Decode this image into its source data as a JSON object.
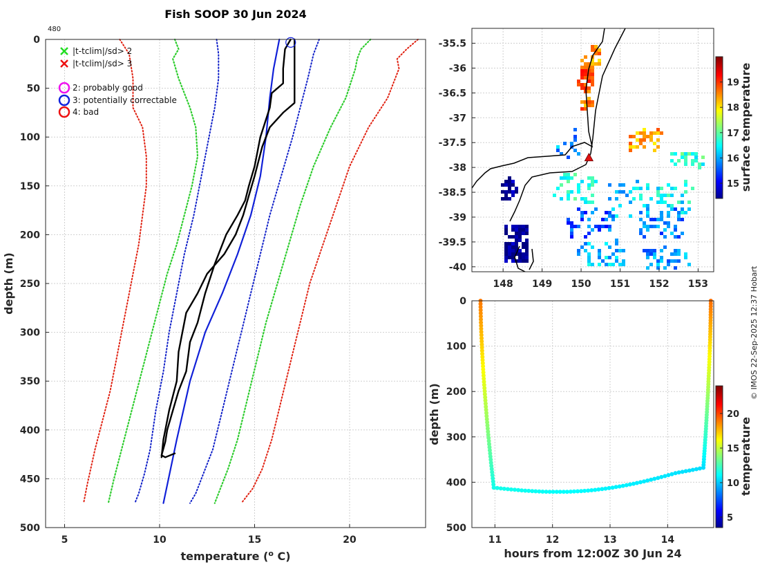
{
  "title": "Fish SOOP 30 Jun 2024",
  "profile_label": "480",
  "credit": "© IMOS 22-Sep-2025 12:37 Hobart",
  "colors": {
    "clim_green": "#2ecc2e",
    "clim_red": "#e02010",
    "clim_blue": "#1020c8",
    "profile": "#000000",
    "model": "#1020d8"
  },
  "legend": [
    {
      "marker": "x",
      "color": "#22dd22",
      "label": "|t-tclim|/sd> 2"
    },
    {
      "marker": "x",
      "color": "#ee1111",
      "label": "|t-tclim|/sd> 3"
    },
    {
      "marker": "o",
      "color": "#ee11ee",
      "label": "2: probably good"
    },
    {
      "marker": "o",
      "color": "#1122dd",
      "label": "3: potentially correctable"
    },
    {
      "marker": "o",
      "color": "#ee1111",
      "label": "4: bad"
    }
  ],
  "chart_data": [
    {
      "type": "line",
      "id": "profile",
      "xlabel": "temperature (o C)",
      "xlabel_main": "temperature (",
      "xlabel_sup": "o",
      "xlabel_end": " C)",
      "ylabel": "depth (m)",
      "xlim": [
        4,
        24
      ],
      "ylim": [
        500,
        0
      ],
      "xticks": [
        5,
        10,
        15,
        20
      ],
      "yticks": [
        0,
        50,
        100,
        150,
        200,
        250,
        300,
        350,
        400,
        450,
        500
      ],
      "flagged_point": {
        "temp": 16.9,
        "depth": 1
      },
      "series": [
        {
          "name": "clim +3sd",
          "style": "red-dotted",
          "temp": [
            23.6,
            23.0,
            22.5,
            22.6,
            22.0,
            21.0,
            20.0,
            19.3,
            18.6,
            17.9,
            17.4,
            16.9,
            16.4,
            15.9,
            15.4,
            14.9,
            14.3
          ],
          "depth": [
            0,
            10,
            20,
            30,
            60,
            90,
            130,
            170,
            210,
            250,
            290,
            330,
            370,
            410,
            440,
            460,
            475
          ]
        },
        {
          "name": "clim +2sd",
          "style": "green-dotted",
          "temp": [
            21.1,
            20.6,
            20.4,
            20.3,
            19.8,
            19.0,
            18.1,
            17.4,
            16.8,
            16.2,
            15.6,
            15.1,
            14.6,
            14.1,
            13.6,
            13.2,
            12.9
          ],
          "depth": [
            0,
            10,
            20,
            30,
            60,
            90,
            130,
            170,
            210,
            250,
            290,
            330,
            370,
            410,
            440,
            460,
            475
          ]
        },
        {
          "name": "clim +1sd",
          "style": "blue-dotted",
          "temp": [
            18.4,
            18.1,
            17.8,
            17.4,
            17.0,
            16.4,
            15.8,
            15.3,
            14.8,
            14.3,
            13.8,
            13.3,
            12.8,
            12.3,
            11.9,
            11.6
          ],
          "depth": [
            0,
            15,
            40,
            70,
            100,
            140,
            180,
            220,
            260,
            300,
            340,
            380,
            420,
            445,
            465,
            475
          ]
        },
        {
          "name": "clim -1sd",
          "style": "blue-dotted",
          "temp": [
            13.0,
            13.1,
            13.1,
            12.9,
            12.6,
            12.2,
            11.8,
            11.3,
            10.9,
            10.5,
            10.2,
            9.8,
            9.5,
            9.2,
            8.9,
            8.7
          ],
          "depth": [
            0,
            15,
            40,
            70,
            100,
            140,
            180,
            220,
            260,
            300,
            340,
            380,
            420,
            445,
            465,
            475
          ]
        },
        {
          "name": "clim -2sd",
          "style": "green-dotted",
          "temp": [
            10.8,
            11.0,
            10.7,
            11.0,
            11.6,
            11.9,
            12.0,
            11.7,
            11.3,
            10.9,
            10.4,
            10.0,
            9.6,
            9.2,
            8.8,
            8.4,
            8.0,
            7.6,
            7.3
          ],
          "depth": [
            0,
            10,
            20,
            40,
            70,
            90,
            120,
            150,
            180,
            210,
            240,
            270,
            300,
            330,
            360,
            390,
            420,
            450,
            475
          ]
        },
        {
          "name": "clim -3sd",
          "style": "red-dotted",
          "temp": [
            7.9,
            8.4,
            8.6,
            8.6,
            9.1,
            9.3,
            9.3,
            9.1,
            8.9,
            8.6,
            8.3,
            8.0,
            7.7,
            7.4,
            7.0,
            6.6,
            6.2,
            6.0
          ],
          "depth": [
            0,
            15,
            40,
            70,
            90,
            120,
            150,
            180,
            210,
            240,
            270,
            300,
            330,
            360,
            390,
            420,
            455,
            475
          ]
        },
        {
          "name": "model climatology",
          "style": "blue-solid",
          "temp": [
            16.3,
            16.0,
            15.8,
            15.6,
            15.3,
            14.8,
            14.1,
            13.3,
            12.4,
            11.6,
            10.9,
            10.2
          ],
          "depth": [
            0,
            30,
            60,
            100,
            140,
            180,
            220,
            260,
            300,
            350,
            410,
            475
          ]
        },
        {
          "name": "profile A",
          "style": "black-solid",
          "temp": [
            16.9,
            16.6,
            16.5,
            16.5,
            15.9,
            15.8,
            15.3,
            15.0,
            14.7,
            14.5,
            14.1,
            13.5,
            12.9,
            12.4,
            12.0,
            11.6,
            11.4,
            11.0,
            10.7,
            10.4,
            10.3,
            10.1,
            10.3,
            10.8
          ],
          "depth": [
            0,
            10,
            30,
            45,
            55,
            70,
            100,
            130,
            150,
            165,
            180,
            200,
            230,
            260,
            290,
            310,
            340,
            360,
            380,
            400,
            412,
            426,
            428,
            424
          ]
        },
        {
          "name": "profile B",
          "style": "black-solid",
          "temp": [
            17.1,
            17.1,
            17.1,
            16.5,
            15.8,
            15.4,
            15.0,
            14.7,
            14.4,
            14.0,
            13.4,
            12.5,
            12.0,
            11.4,
            11.0,
            10.9,
            10.5,
            10.2,
            10.1
          ],
          "depth": [
            0,
            30,
            65,
            75,
            90,
            110,
            140,
            160,
            180,
            200,
            220,
            240,
            260,
            280,
            320,
            350,
            380,
            410,
            428
          ]
        }
      ]
    },
    {
      "type": "heatmap",
      "id": "sst-map",
      "title": "",
      "xlabel": "",
      "ylabel": "",
      "xlim": [
        147.2,
        153.4
      ],
      "ylim": [
        -40.1,
        -35.2
      ],
      "xticks": [
        148,
        149,
        150,
        151,
        152,
        153
      ],
      "yticks": [
        -35.5,
        -36,
        -36.5,
        -37,
        -37.5,
        -38,
        -38.5,
        -39,
        -39.5,
        -40
      ],
      "ytick_labels": [
        "-35.5",
        "-36",
        "-36.5",
        "-37",
        "-37.5",
        "-38",
        "-38.5",
        "-39",
        "-39.5",
        "-40"
      ],
      "colorbar": {
        "label": "surface temperature",
        "range": [
          14.4,
          20.0
        ],
        "ticks": [
          15,
          16,
          17,
          18,
          19
        ]
      },
      "marker": {
        "lon": 150.2,
        "lat": -37.8,
        "color": "#e01010"
      },
      "patches": [
        {
          "lon": 150.1,
          "lat": -36.1,
          "value": 18.8,
          "n": 70,
          "slon": 0.18,
          "slat": 0.35
        },
        {
          "lon": 150.3,
          "lat": -35.7,
          "value": 18.5,
          "n": 20,
          "slon": 0.12,
          "slat": 0.2
        },
        {
          "lon": 150.1,
          "lat": -36.7,
          "value": 18.6,
          "n": 25,
          "slon": 0.12,
          "slat": 0.12
        },
        {
          "lon": 151.6,
          "lat": -37.4,
          "value": 18.4,
          "n": 35,
          "slon": 0.4,
          "slat": 0.2
        },
        {
          "lon": 152.7,
          "lat": -37.8,
          "value": 16.8,
          "n": 30,
          "slon": 0.4,
          "slat": 0.15
        },
        {
          "lon": 149.8,
          "lat": -38.4,
          "value": 16.6,
          "n": 40,
          "slon": 0.5,
          "slat": 0.3
        },
        {
          "lon": 151.2,
          "lat": -38.6,
          "value": 16.3,
          "n": 40,
          "slon": 0.6,
          "slat": 0.4
        },
        {
          "lon": 152.4,
          "lat": -38.6,
          "value": 16.5,
          "n": 35,
          "slon": 0.5,
          "slat": 0.4
        },
        {
          "lon": 152.0,
          "lat": -39.1,
          "value": 15.8,
          "n": 45,
          "slon": 0.6,
          "slat": 0.3
        },
        {
          "lon": 150.2,
          "lat": -39.1,
          "value": 15.6,
          "n": 45,
          "slon": 0.6,
          "slat": 0.3
        },
        {
          "lon": 150.5,
          "lat": -39.7,
          "value": 16.2,
          "n": 45,
          "slon": 0.6,
          "slat": 0.25
        },
        {
          "lon": 152.1,
          "lat": -39.8,
          "value": 15.9,
          "n": 40,
          "slon": 0.6,
          "slat": 0.2
        },
        {
          "lon": 148.1,
          "lat": -38.4,
          "value": 14.4,
          "n": 35,
          "slon": 0.2,
          "slat": 0.2
        },
        {
          "lon": 148.3,
          "lat": -39.5,
          "value": 14.4,
          "n": 120,
          "slon": 0.3,
          "slat": 0.35
        },
        {
          "lon": 149.6,
          "lat": -37.5,
          "value": 15.9,
          "n": 15,
          "slon": 0.3,
          "slat": 0.3
        }
      ]
    },
    {
      "type": "scatter",
      "id": "depth-time",
      "xlabel": "hours from 12:00Z 30 Jun 24",
      "ylabel": "depth (m)",
      "xlim": [
        10.6,
        14.8
      ],
      "ylim": [
        500,
        0
      ],
      "xticks": [
        11,
        12,
        13,
        14
      ],
      "yticks": [
        0,
        100,
        200,
        300,
        400,
        500
      ],
      "colorbar": {
        "label": "temperature",
        "range": [
          3.5,
          24
        ],
        "ticks": [
          5,
          10,
          15,
          20
        ]
      },
      "segments": [
        {
          "t0": 10.75,
          "t1": 10.98,
          "d0": 0,
          "d1": 412,
          "v0": 19.0,
          "v1": 11.6,
          "n": 60,
          "shape": "descent"
        },
        {
          "t0": 10.98,
          "t1": 14.62,
          "d0": 412,
          "d1": 368,
          "v0": 11.6,
          "v1": 10.5,
          "n": 60,
          "shape": "bottom"
        },
        {
          "t0": 14.62,
          "t1": 14.75,
          "d0": 368,
          "d1": 0,
          "v0": 10.5,
          "v1": 19.2,
          "n": 60,
          "shape": "ascent"
        }
      ]
    }
  ]
}
